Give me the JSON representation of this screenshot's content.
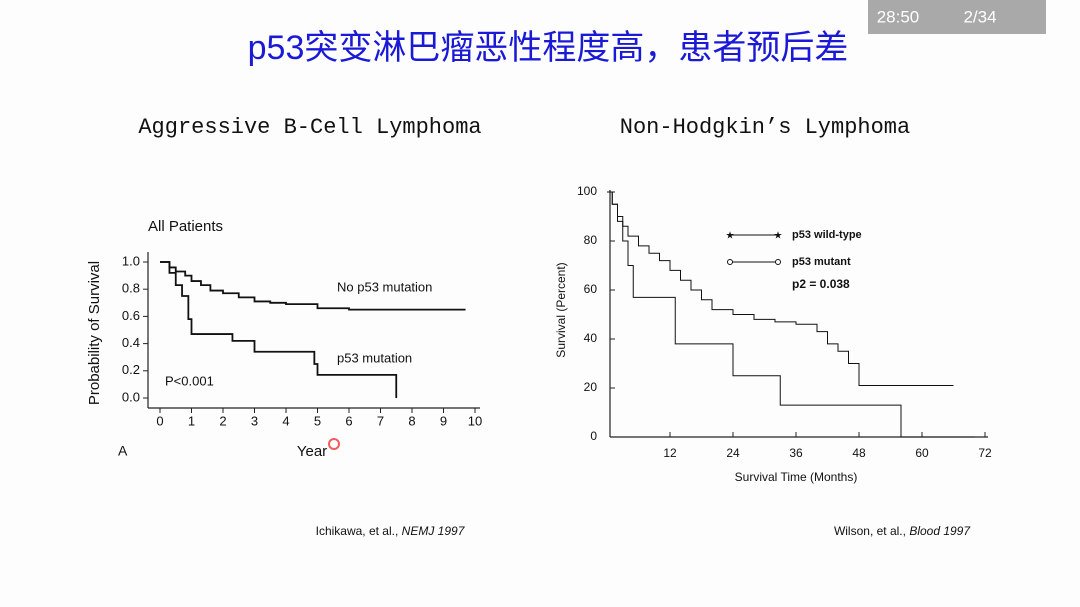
{
  "slide": {
    "title": "p53突变淋巴瘤恶性程度高，患者预后差",
    "timer": "28:50",
    "page": "2/34"
  },
  "citations": [
    {
      "authors": "Ichikawa, et al.,",
      "journal": "NEMJ 1997"
    },
    {
      "authors": "Wilson, et al.,",
      "journal": "Blood 1997"
    }
  ],
  "chart_data": [
    {
      "type": "line",
      "step": true,
      "title": "Aggressive B-Cell Lymphoma",
      "subtitle": "All Patients",
      "panel_label": "A",
      "annotation": "P<0.001",
      "x_label": "Year",
      "y_label": "Probability of Survival",
      "xlim": [
        0,
        10
      ],
      "ylim": [
        0,
        1
      ],
      "xticks": [
        0,
        1,
        2,
        3,
        4,
        5,
        6,
        7,
        8,
        9,
        10
      ],
      "yticks": [
        {
          "value": 0,
          "label": "0.0"
        },
        0.2,
        0.4,
        0.6,
        0.8,
        {
          "value": 1,
          "label": "1.0"
        }
      ],
      "legend": false,
      "series": [
        {
          "name": "No p53 mutation",
          "color": "#111111",
          "x": [
            0,
            0.3,
            0.5,
            0.8,
            1,
            1.3,
            1.6,
            2,
            2.5,
            3,
            3.5,
            4,
            5,
            6,
            7,
            8,
            9,
            9.7
          ],
          "values": [
            1,
            0.96,
            0.93,
            0.9,
            0.86,
            0.83,
            0.79,
            0.77,
            0.74,
            0.71,
            0.7,
            0.69,
            0.66,
            0.65,
            0.65,
            0.65,
            0.65,
            0.65
          ]
        },
        {
          "name": "p53 mutation",
          "color": "#111111",
          "x": [
            0,
            0.3,
            0.5,
            0.7,
            0.9,
            1,
            2.3,
            3,
            4.9,
            5,
            7.5
          ],
          "values": [
            1,
            0.92,
            0.83,
            0.75,
            0.58,
            0.47,
            0.42,
            0.34,
            0.25,
            0.17,
            0
          ]
        }
      ]
    },
    {
      "type": "line",
      "step": true,
      "title": "Non-Hodgkin’s Lymphoma",
      "annotation": "p2 = 0.038",
      "x_label": "Survival Time (Months)",
      "y_label": "Survival (Percent)",
      "xlim": [
        0,
        72
      ],
      "ylim": [
        0,
        100
      ],
      "xticks": [
        12,
        24,
        36,
        48,
        60,
        72
      ],
      "yticks": [
        0,
        20,
        40,
        60,
        80,
        100
      ],
      "legend": true,
      "series": [
        {
          "name": "p53 wild-type",
          "color": "#111111",
          "marker": "star",
          "x": [
            0,
            1,
            2,
            3,
            4,
            6,
            8,
            10,
            12,
            14,
            16,
            18,
            20,
            24,
            28,
            32,
            36,
            40,
            42,
            44,
            46,
            48,
            60,
            66
          ],
          "values": [
            100,
            95,
            90,
            86,
            82,
            78,
            75,
            72,
            68,
            64,
            60,
            56,
            52,
            50,
            48,
            47,
            46,
            43,
            38,
            35,
            30,
            21,
            21,
            21
          ]
        },
        {
          "name": "p53 mutant",
          "color": "#111111",
          "marker": "circle",
          "x": [
            0,
            1,
            2,
            3,
            4,
            5,
            12,
            13,
            19,
            24,
            32,
            33,
            55,
            56,
            70
          ],
          "values": [
            100,
            95,
            88,
            80,
            70,
            57,
            57,
            38,
            38,
            25,
            25,
            13,
            13,
            0,
            0
          ]
        }
      ]
    }
  ]
}
